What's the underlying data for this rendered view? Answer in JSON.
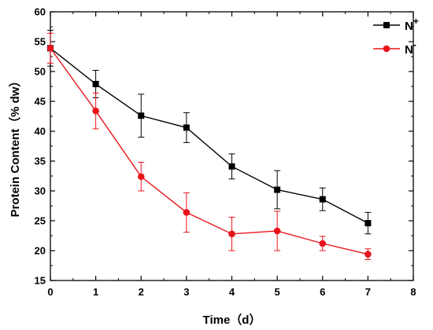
{
  "chart_data": {
    "type": "line",
    "xlabel": "Time（d）",
    "ylabel": "Protein Content（% dw）",
    "xlim": [
      0,
      8
    ],
    "ylim": [
      15,
      60
    ],
    "x_ticks": [
      "0",
      "1",
      "2",
      "3",
      "4",
      "5",
      "6",
      "7",
      "8"
    ],
    "y_ticks": [
      "15",
      "20",
      "25",
      "30",
      "35",
      "40",
      "45",
      "50",
      "55",
      "60"
    ],
    "grid": false,
    "legend_position": "top-right",
    "series": [
      {
        "name": "N",
        "name_sup": "+",
        "color": "#000000",
        "marker": "square",
        "x": [
          0,
          1,
          2,
          3,
          4,
          5,
          6,
          7
        ],
        "y": [
          53.9,
          47.9,
          42.6,
          40.6,
          34.1,
          30.2,
          28.6,
          24.6
        ],
        "err": [
          3.0,
          2.3,
          3.6,
          2.5,
          2.1,
          3.2,
          1.9,
          1.8
        ]
      },
      {
        "name": "N",
        "name_sup": "-",
        "color": "#e8141b",
        "marker": "circle",
        "x": [
          0,
          1,
          2,
          3,
          4,
          5,
          6,
          7
        ],
        "y": [
          53.9,
          43.4,
          32.4,
          26.4,
          22.8,
          23.3,
          21.2,
          19.4
        ],
        "err": [
          2.5,
          3.0,
          2.4,
          3.3,
          2.8,
          3.3,
          1.2,
          0.9
        ]
      }
    ]
  }
}
